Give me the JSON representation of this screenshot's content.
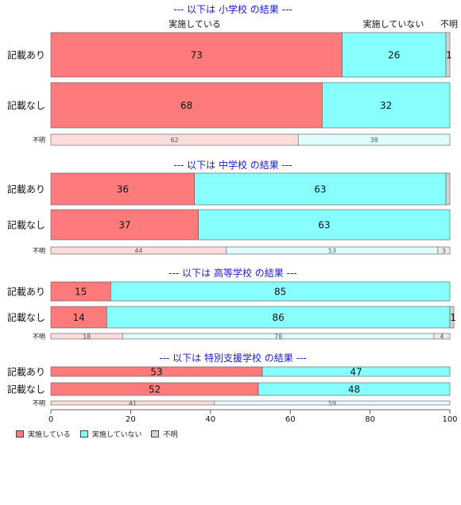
{
  "chart_data": {
    "type": "bar",
    "orientation": "horizontal-stacked-percent",
    "x_ticks": [
      0,
      20,
      40,
      60,
      80,
      100
    ],
    "xlim": [
      0,
      100
    ],
    "series_names": [
      "実施している",
      "実施していない",
      "不明"
    ],
    "colors": {
      "yes": "#ff7b7b",
      "no": "#88ffff",
      "unk": "#d3d3d3",
      "yes_light": "#ffdcdc",
      "no_light": "#e0ffff",
      "unk_light": "#ececec",
      "title": "#1a1acc"
    },
    "top_headers": [
      "実施している",
      "実施していない",
      "不明"
    ],
    "groups": [
      {
        "title": "--- 以下は 小学校 の結果 ---",
        "rows": [
          {
            "label": "記載あり",
            "values": [
              73,
              26,
              1
            ],
            "labels": [
              "73",
              "26",
              "1"
            ]
          },
          {
            "label": "記載なし",
            "values": [
              68,
              32,
              0
            ],
            "labels": [
              "68",
              "32",
              ""
            ]
          },
          {
            "label": "不明",
            "values": [
              62,
              38,
              0
            ],
            "labels": [
              "62",
              "38",
              ""
            ]
          }
        ]
      },
      {
        "title": "--- 以下は 中学校 の結果 ---",
        "rows": [
          {
            "label": "記載あり",
            "values": [
              36,
              63,
              1
            ],
            "labels": [
              "36",
              "63",
              ""
            ]
          },
          {
            "label": "記載なし",
            "values": [
              37,
              63,
              0
            ],
            "labels": [
              "37",
              "63",
              ""
            ]
          },
          {
            "label": "不明",
            "values": [
              44,
              53,
              3
            ],
            "labels": [
              "44",
              "53",
              "3"
            ]
          }
        ]
      },
      {
        "title": "--- 以下は 高等学校 の結果 ---",
        "rows": [
          {
            "label": "記載あり",
            "values": [
              15,
              85,
              0
            ],
            "labels": [
              "15",
              "85",
              ""
            ]
          },
          {
            "label": "記載なし",
            "values": [
              14,
              86,
              1
            ],
            "labels": [
              "14",
              "86",
              "1"
            ]
          },
          {
            "label": "不明",
            "values": [
              18,
              78,
              4
            ],
            "labels": [
              "18",
              "78",
              "4"
            ]
          }
        ]
      },
      {
        "title": "--- 以下は 特別支援学校 の結果 ---",
        "rows": [
          {
            "label": "記載あり",
            "values": [
              53,
              47,
              0
            ],
            "labels": [
              "53",
              "47",
              ""
            ]
          },
          {
            "label": "記載なし",
            "values": [
              52,
              48,
              0
            ],
            "labels": [
              "52",
              "48",
              ""
            ]
          },
          {
            "label": "不明",
            "values": [
              41,
              59,
              0
            ],
            "labels": [
              "41",
              "59",
              ""
            ]
          }
        ]
      }
    ]
  },
  "legend": {
    "items": [
      "実施している",
      "実施していない",
      "不明"
    ]
  }
}
